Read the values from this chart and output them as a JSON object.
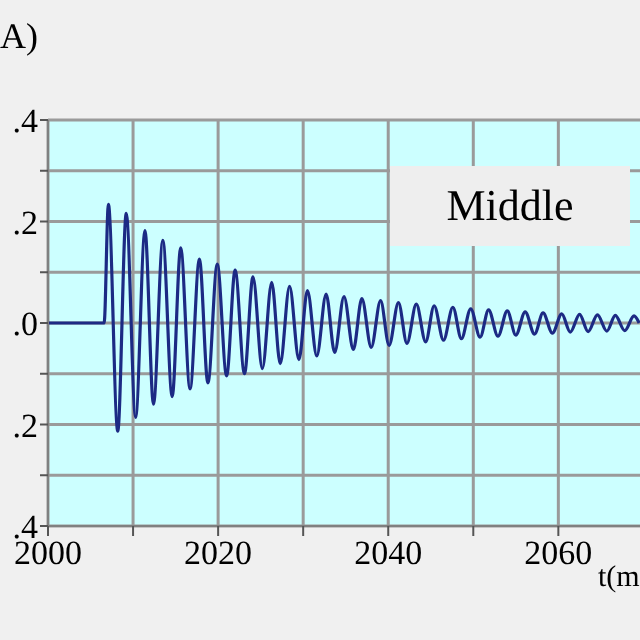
{
  "chart_data": {
    "type": "line",
    "ylabel": "A)",
    "xlabel": "t(m",
    "annotations": [
      "Middle"
    ],
    "xlim": [
      2000,
      2069.6
    ],
    "xticks": [
      {
        "value": 2000,
        "label": "2000"
      },
      {
        "value": 2010,
        "label": null
      },
      2020,
      {
        "value": 2030,
        "label": null
      },
      2040,
      {
        "value": 2050,
        "label": null
      },
      2060
    ],
    "ylim": [
      -0.4,
      0.4
    ],
    "yticks": [
      {
        "value": 0.4,
        "label": ".4"
      },
      {
        "value": 0.3,
        "label": null
      },
      {
        "value": 0.2,
        "label": ".2"
      },
      {
        "value": 0.1,
        "label": null
      },
      {
        "value": 0,
        "label": ".0"
      },
      {
        "value": -0.1,
        "label": null
      },
      {
        "value": -0.2,
        "label": ".2"
      },
      {
        "value": -0.3,
        "label": null
      },
      {
        "value": -0.4,
        "label": ".4"
      }
    ],
    "grid": true,
    "marker": "none",
    "line_style": "solid",
    "series": [
      {
        "color": "#1c2a84",
        "x": [
          2000,
          2006.6,
          2007.1,
          2008.2,
          2009.2,
          2010.3,
          2011.4,
          2012.4,
          2013.5,
          2014.6,
          2015.6,
          2016.7,
          2017.8,
          2018.8,
          2019.9,
          2021.0,
          2022.0,
          2023.1,
          2024.1,
          2025.2,
          2026.3,
          2027.3,
          2028.4,
          2029.5,
          2030.5,
          2031.6,
          2032.7,
          2033.7,
          2034.8,
          2035.9,
          2036.9,
          2038.0,
          2039.1,
          2040.1,
          2041.2,
          2042.2,
          2043.3,
          2044.4,
          2045.4,
          2046.5,
          2047.6,
          2048.6,
          2049.7,
          2050.8,
          2051.8,
          2052.9,
          2054.0,
          2055.0,
          2056.1,
          2057.2,
          2058.2,
          2059.3,
          2060.4,
          2061.4,
          2062.5,
          2063.5,
          2064.6,
          2065.7,
          2066.7,
          2067.8,
          2068.9,
          2069.5
        ],
        "values": [
          0,
          0,
          0.234,
          -0.213,
          0.216,
          -0.186,
          0.182,
          -0.16,
          0.163,
          -0.145,
          0.148,
          -0.13,
          0.126,
          -0.118,
          0.116,
          -0.104,
          0.104,
          -0.1,
          0.091,
          -0.09,
          0.08,
          -0.08,
          0.072,
          -0.072,
          0.064,
          -0.065,
          0.057,
          -0.058,
          0.052,
          -0.052,
          0.048,
          -0.048,
          0.044,
          -0.044,
          0.04,
          -0.04,
          0.037,
          -0.037,
          0.034,
          -0.034,
          0.031,
          -0.031,
          0.028,
          -0.028,
          0.026,
          -0.026,
          0.024,
          -0.024,
          0.022,
          -0.022,
          0.02,
          -0.02,
          0.018,
          -0.018,
          0.017,
          -0.017,
          0.016,
          -0.016,
          0.015,
          -0.015,
          0.014,
          0
        ]
      }
    ]
  }
}
